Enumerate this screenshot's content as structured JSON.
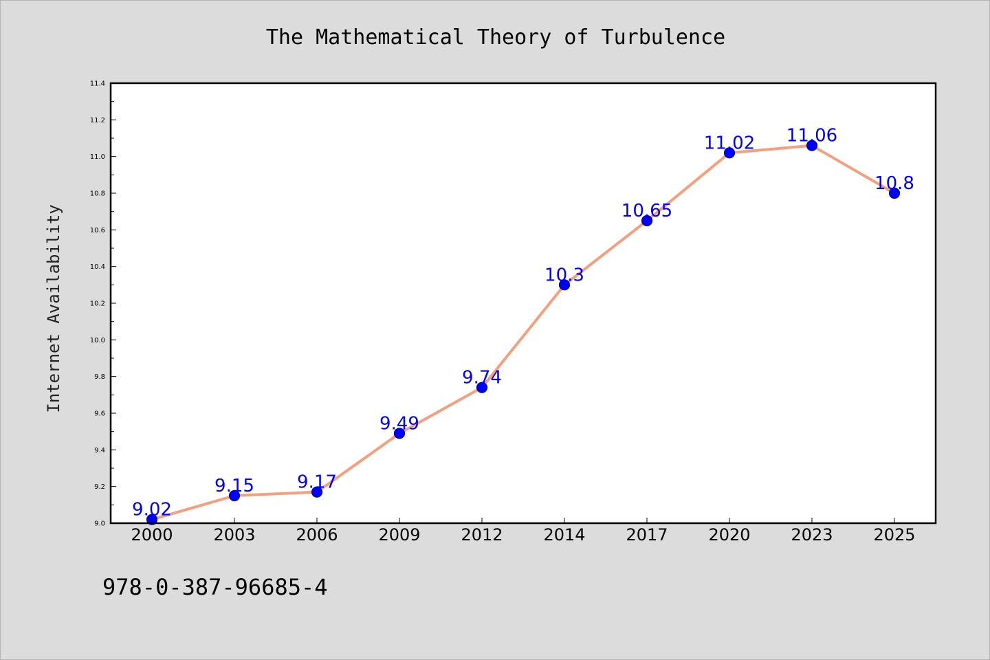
{
  "colors": {
    "background": "#dcdcdc",
    "plot_background": "#ffffff",
    "line": "#f4a07f",
    "marker_fill": "#0000ff",
    "marker_edge": "#00008b",
    "data_label": "#0000ff"
  },
  "footer": {
    "isbn": "978-0-387-96685-4"
  },
  "chart_data": {
    "type": "line",
    "title": "The Mathematical Theory of Turbulence",
    "xlabel": "",
    "ylabel": "Internet Availability",
    "categories": [
      "2000",
      "2003",
      "2006",
      "2009",
      "2012",
      "2014",
      "2017",
      "2020",
      "2023",
      "2025"
    ],
    "series": [
      {
        "values": [
          9.02,
          9.15,
          9.17,
          9.49,
          9.74,
          10.3,
          10.65,
          11.02,
          11.06,
          10.8
        ],
        "data_labels": [
          "9.02",
          "9.15",
          "9.17",
          "9.49",
          "9.74",
          "10.3",
          "10.65",
          "11.02",
          "11.06",
          "10.8"
        ]
      }
    ],
    "ylim": [
      9.0,
      11.4
    ],
    "yticks": [
      "9.0",
      "9.2",
      "9.4",
      "9.6",
      "9.8",
      "10.0",
      "10.2",
      "10.4",
      "10.6",
      "10.8",
      "11.0",
      "11.2",
      "11.4"
    ],
    "grid": false,
    "legend": "none",
    "markers": true
  }
}
